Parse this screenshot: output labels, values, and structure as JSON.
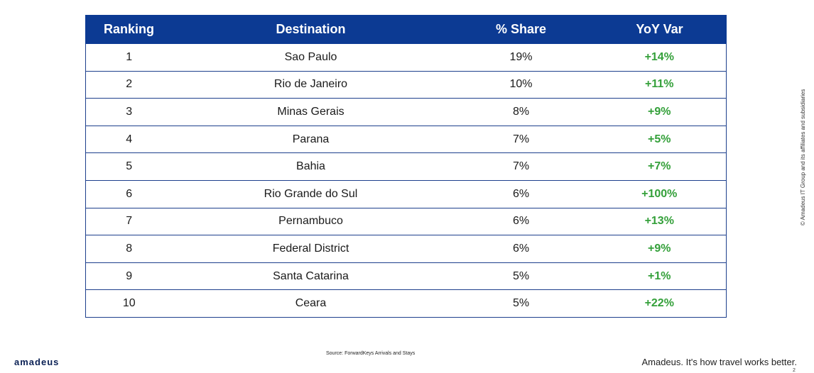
{
  "table": {
    "headers": [
      "Ranking",
      "Destination",
      "% Share",
      "YoY Var"
    ],
    "rows": [
      {
        "rank": "1",
        "destination": "Sao Paulo",
        "share": "19%",
        "yoy": "+14%"
      },
      {
        "rank": "2",
        "destination": "Rio de Janeiro",
        "share": "10%",
        "yoy": "+11%"
      },
      {
        "rank": "3",
        "destination": "Minas Gerais",
        "share": "8%",
        "yoy": "+9%"
      },
      {
        "rank": "4",
        "destination": "Parana",
        "share": "7%",
        "yoy": "+5%"
      },
      {
        "rank": "5",
        "destination": "Bahia",
        "share": "7%",
        "yoy": "+7%"
      },
      {
        "rank": "6",
        "destination": "Rio Grande do Sul",
        "share": "6%",
        "yoy": "+100%"
      },
      {
        "rank": "7",
        "destination": "Pernambuco",
        "share": "6%",
        "yoy": "+13%"
      },
      {
        "rank": "8",
        "destination": "Federal District",
        "share": "6%",
        "yoy": "+9%"
      },
      {
        "rank": "9",
        "destination": "Santa Catarina",
        "share": "5%",
        "yoy": "+1%"
      },
      {
        "rank": "10",
        "destination": "Ceara",
        "share": "5%",
        "yoy": "+22%"
      }
    ]
  },
  "footer": {
    "source": "Source: ForwardKeys Arrivals and Stays",
    "logo": "amadeus",
    "tagline": "Amadeus. It's how travel works better.",
    "copyright": "© Amadeus IT Group and its affiliates and subsidiaries",
    "page_number": "2"
  },
  "colors": {
    "header_bg": "#0c3a93",
    "yoy_positive": "#34a03a"
  }
}
